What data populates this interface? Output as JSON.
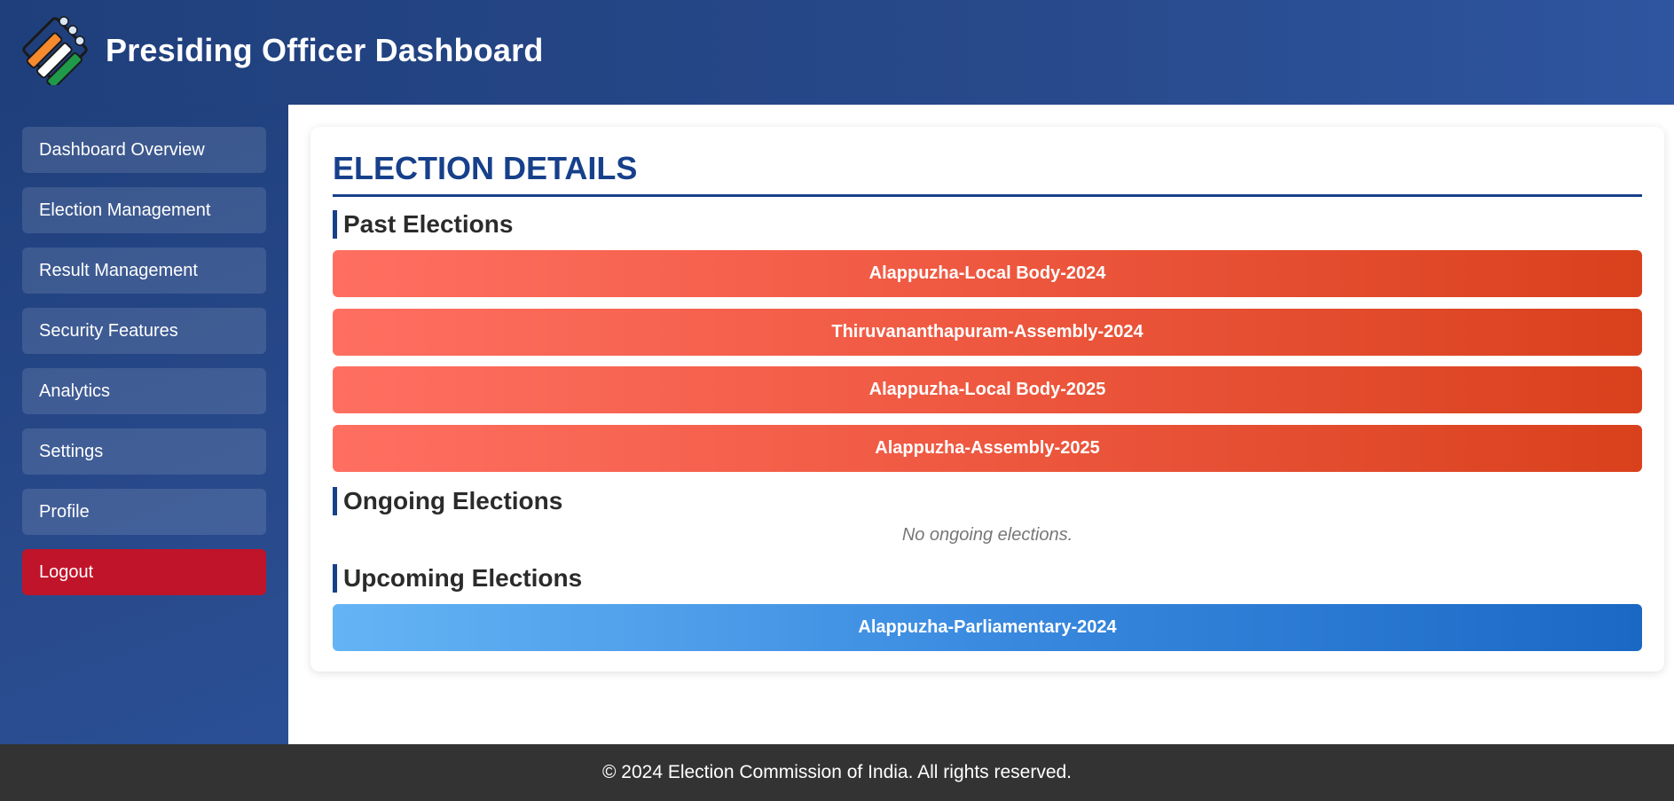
{
  "header": {
    "title": "Presiding Officer Dashboard",
    "logo_icon": "ballot-finger-logo-icon"
  },
  "sidebar": {
    "items": [
      {
        "label": "Dashboard Overview"
      },
      {
        "label": "Election Management"
      },
      {
        "label": "Result Management"
      },
      {
        "label": "Security Features"
      },
      {
        "label": "Analytics"
      },
      {
        "label": "Settings"
      },
      {
        "label": "Profile"
      },
      {
        "label": "Logout"
      }
    ]
  },
  "main": {
    "title": "ELECTION DETAILS",
    "past": {
      "heading": "Past Elections",
      "items": [
        "Alappuzha-Local Body-2024",
        "Thiruvananthapuram-Assembly-2024",
        "Alappuzha-Local Body-2025",
        "Alappuzha-Assembly-2025"
      ]
    },
    "ongoing": {
      "heading": "Ongoing Elections",
      "empty_message": "No ongoing elections."
    },
    "upcoming": {
      "heading": "Upcoming Elections",
      "items": [
        "Alappuzha-Parliamentary-2024"
      ]
    }
  },
  "footer": {
    "text": "© 2024 Election Commission of India. All rights reserved."
  },
  "colors": {
    "brand_blue": "#17408b",
    "past_gradient_start": "#ff6f61",
    "past_gradient_end": "#d9411d",
    "upcoming_gradient_start": "#64b4f5",
    "upcoming_gradient_end": "#1a68c4",
    "logout_red": "#c0142a"
  }
}
